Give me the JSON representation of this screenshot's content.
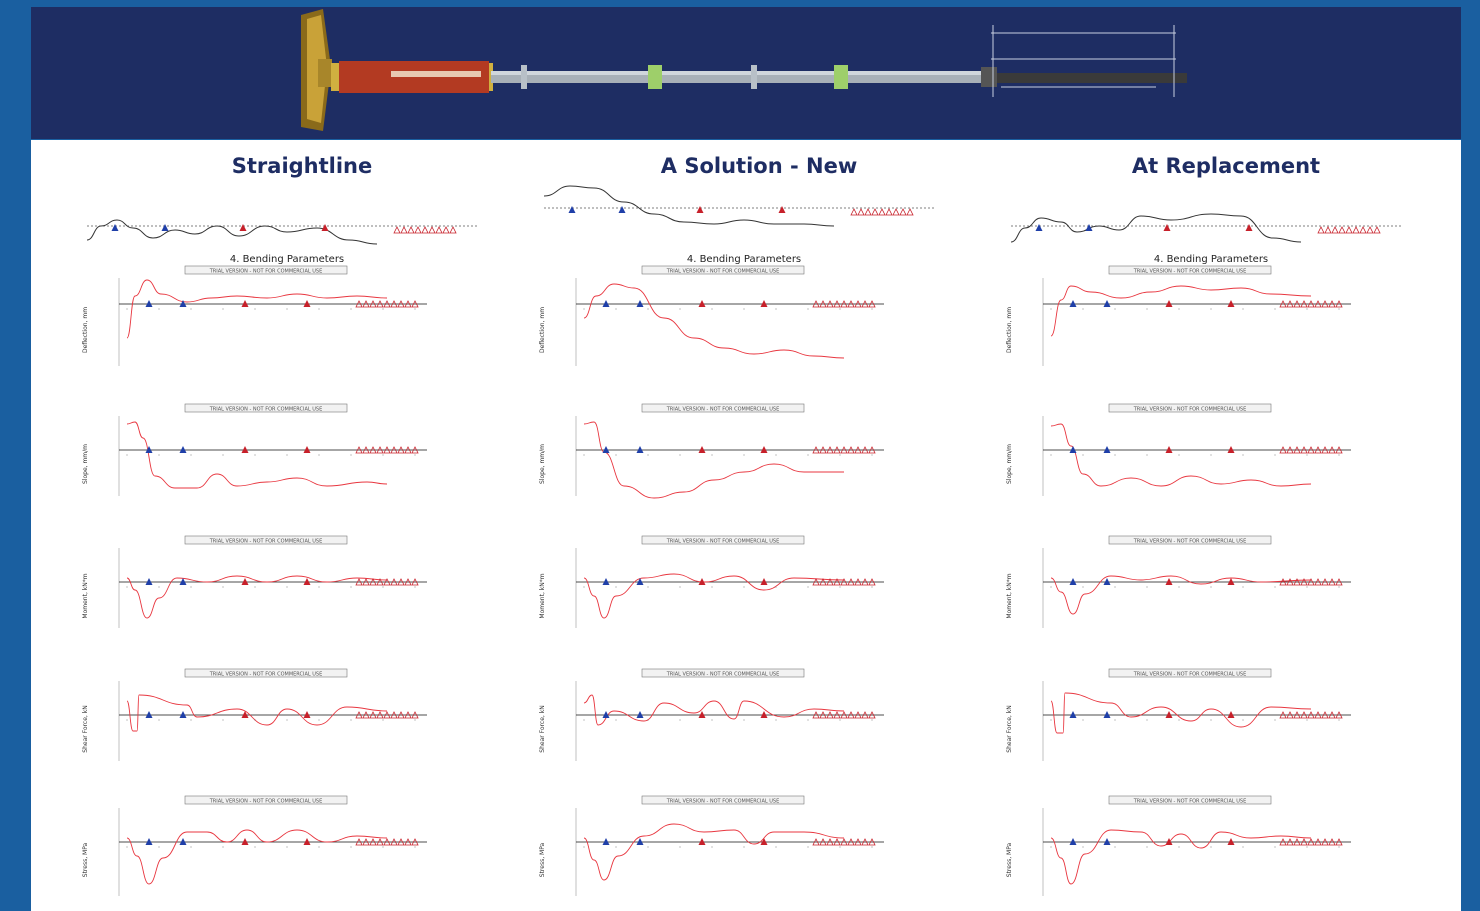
{
  "columns": [
    {
      "id": "straightline",
      "title": "Straightline",
      "section_title": "4. Bending Parameters"
    },
    {
      "id": "solution",
      "title": "A Solution - New",
      "section_title": "4. Bending Parameters"
    },
    {
      "id": "replacement",
      "title": "At Replacement",
      "section_title": "4. Bending Parameters"
    }
  ],
  "plot_labels": {
    "watermark": "TRIAL VERSION - NOT FOR COMMERCIAL USE",
    "deflection": "Deflection, mm",
    "slope": "Slope, mm/m",
    "moment": "Moment, kN*m",
    "shear": "Shear Force, kN",
    "stress": "Stress, MPa"
  },
  "colors": {
    "frame": "#1a5fa0",
    "banner": "#1e2d63",
    "title": "#1e2d63",
    "curve": "#e8363f",
    "support_blue": "#1f3fa8",
    "support_red": "#c7202a"
  }
}
